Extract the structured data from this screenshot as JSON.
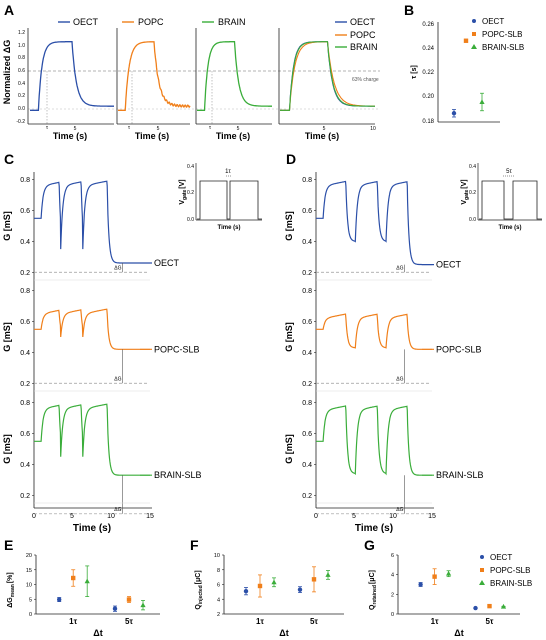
{
  "colors": {
    "oect": "#2b4fa8",
    "popc": "#f07f1a",
    "brain": "#3aad3a",
    "axis": "#222222",
    "dash": "#9a9a9a"
  },
  "panels": {
    "A": {
      "label": "A",
      "ylabel": "Normalized ΔG",
      "xlabel": "Time (s)",
      "yticks": [
        "1.2",
        "1.0",
        "0.8",
        "0.6",
        "0.4",
        "0.2",
        "0.0",
        "-0.2"
      ],
      "xtick_mid": "5",
      "xtick_end": "10",
      "tau": "τ",
      "threshold_label": "63% charge",
      "legend": {
        "oect": "OECT",
        "popc": "POPC",
        "brain": "BRAIN"
      }
    },
    "B": {
      "label": "B",
      "ylabel": "τ [s]",
      "yticks": [
        "0.26",
        "0.24",
        "0.22",
        "0.20",
        "0.18"
      ],
      "legend": {
        "oect": "OECT",
        "popc": "POPC-SLB",
        "brain": "BRAIN-SLB"
      }
    },
    "C": {
      "label": "C",
      "ylabel": "G [mS]",
      "yticks": [
        "0.8",
        "0.6",
        "0.4",
        "0.2"
      ],
      "xticks": [
        "0",
        "5",
        "10",
        "15"
      ],
      "xlabel": "Time (s)",
      "delta": "ΔG",
      "trace_labels": {
        "oect": "OECT",
        "popc": "POPC-SLB",
        "brain": "BRAIN-SLB"
      },
      "inset": {
        "ylabel": "V",
        "ylabel_sub": "gate",
        "ylabel_unit": "[V]",
        "yticks": [
          "0.4",
          "0.2",
          "0.0"
        ],
        "xlabel": "Time (s)",
        "marker": "1τ"
      }
    },
    "D": {
      "label": "D",
      "ylabel": "G [mS]",
      "yticks": [
        "0.8",
        "0.6",
        "0.4",
        "0.2"
      ],
      "xticks": [
        "0",
        "5",
        "10",
        "15"
      ],
      "xlabel": "Time (s)",
      "delta": "ΔG",
      "trace_labels": {
        "oect": "OECT",
        "popc": "POPC-SLB",
        "brain": "BRAIN-SLB"
      },
      "inset": {
        "ylabel": "V",
        "ylabel_sub": "gate",
        "ylabel_unit": "[V]",
        "yticks": [
          "0.4",
          "0.2",
          "0.0"
        ],
        "xlabel": "Time (s)",
        "marker": "5τ"
      }
    },
    "E": {
      "label": "E",
      "ylabel": "ΔG",
      "ylabel_sub": "mean",
      "ylabel_unit": "[%]",
      "yticks": [
        "20",
        "15",
        "10",
        "5",
        "0"
      ],
      "xticks": [
        "1τ",
        "5τ"
      ],
      "xlabel": "Δt"
    },
    "F": {
      "label": "F",
      "ylabel": "Q",
      "ylabel_sub": "injected",
      "ylabel_unit": "[μC]",
      "yticks": [
        "10",
        "8",
        "6",
        "4",
        "2"
      ],
      "xticks": [
        "1τ",
        "5τ"
      ],
      "xlabel": "Δt"
    },
    "G": {
      "label": "G",
      "ylabel": "Q",
      "ylabel_sub": "retained",
      "ylabel_unit": "[μC]",
      "yticks": [
        "6",
        "4",
        "2",
        "0"
      ],
      "xticks": [
        "1τ",
        "5τ"
      ],
      "xlabel": "Δt",
      "legend": {
        "oect": "OECT",
        "popc": "POPC-SLB",
        "brain": "BRAIN-SLB"
      }
    }
  },
  "chart_data": [
    {
      "panel": "A",
      "type": "line",
      "xlabel": "Time (s)",
      "ylabel": "Normalized ΔG",
      "ylim": [
        -0.2,
        1.2
      ],
      "xlim": [
        0,
        10
      ],
      "threshold": 0.63,
      "series": [
        {
          "name": "OECT",
          "tau": 0.19
        },
        {
          "name": "POPC",
          "tau": 0.245
        },
        {
          "name": "BRAIN",
          "tau": 0.2
        }
      ],
      "pulse_window": [
        1,
        5
      ]
    },
    {
      "panel": "B",
      "type": "scatter",
      "ylabel": "τ [s]",
      "ylim": [
        0.18,
        0.26
      ],
      "series": [
        {
          "name": "OECT",
          "value": 0.187,
          "err": 0.003
        },
        {
          "name": "POPC-SLB",
          "value": 0.245,
          "err": 0.001
        },
        {
          "name": "BRAIN-SLB",
          "value": 0.196,
          "err": 0.007
        }
      ]
    },
    {
      "panel": "C",
      "type": "line",
      "xlabel": "Time (s)",
      "ylabel": "G [mS]",
      "xlim": [
        0,
        15
      ],
      "ylim": [
        0.2,
        0.8
      ],
      "inter_pulse_gap": "1τ",
      "series": [
        {
          "name": "OECT",
          "start": 0.55,
          "plateau": 0.76,
          "dip": 0.35,
          "end": 0.26,
          "baseline": 0.2
        },
        {
          "name": "POPC-SLB",
          "start": 0.55,
          "plateau": 0.65,
          "dip": 0.5,
          "end": 0.42,
          "baseline": 0.2
        },
        {
          "name": "BRAIN-SLB",
          "start": 0.55,
          "plateau": 0.76,
          "dip": 0.45,
          "end": 0.33,
          "baseline": 0.08
        }
      ],
      "inset": {
        "ylabel": "V gate [V]",
        "ylim": [
          0,
          0.4
        ],
        "high": 0.3
      }
    },
    {
      "panel": "D",
      "type": "line",
      "xlabel": "Time (s)",
      "ylabel": "G [mS]",
      "xlim": [
        0,
        15
      ],
      "ylim": [
        0.2,
        0.8
      ],
      "inter_pulse_gap": "5τ",
      "series": [
        {
          "name": "OECT",
          "start": 0.55,
          "plateau": 0.76,
          "dip": 0.4,
          "end": 0.25,
          "baseline": 0.2
        },
        {
          "name": "POPC-SLB",
          "start": 0.55,
          "plateau": 0.62,
          "dip": 0.43,
          "end": 0.42,
          "baseline": 0.2
        },
        {
          "name": "BRAIN-SLB",
          "start": 0.55,
          "plateau": 0.75,
          "dip": 0.34,
          "end": 0.33,
          "baseline": 0.08
        }
      ],
      "inset": {
        "ylabel": "V gate [V]",
        "ylim": [
          0,
          0.4
        ],
        "high": 0.3
      }
    },
    {
      "panel": "E",
      "type": "scatter",
      "xlabel": "Δt",
      "ylabel": "ΔG mean [%]",
      "categories": [
        "1τ",
        "5τ"
      ],
      "ylim": [
        0,
        20
      ],
      "series": [
        {
          "name": "OECT",
          "values": [
            4.9,
            1.8
          ],
          "errors": [
            0.7,
            0.9
          ]
        },
        {
          "name": "POPC-SLB",
          "values": [
            12.2,
            4.9
          ],
          "errors": [
            2.8,
            1.0
          ]
        },
        {
          "name": "BRAIN-SLB",
          "values": [
            11.1,
            3.0
          ],
          "errors": [
            5.2,
            1.6
          ]
        }
      ]
    },
    {
      "panel": "F",
      "type": "scatter",
      "xlabel": "Δt",
      "ylabel": "Q injected [μC]",
      "categories": [
        "1τ",
        "5τ"
      ],
      "ylim": [
        2,
        10
      ],
      "series": [
        {
          "name": "OECT",
          "values": [
            5.1,
            5.3
          ],
          "errors": [
            0.5,
            0.4
          ]
        },
        {
          "name": "POPC-SLB",
          "values": [
            5.8,
            6.7
          ],
          "errors": [
            1.5,
            1.7
          ]
        },
        {
          "name": "BRAIN-SLB",
          "values": [
            6.3,
            7.3
          ],
          "errors": [
            0.6,
            0.6
          ]
        }
      ]
    },
    {
      "panel": "G",
      "type": "scatter",
      "xlabel": "Δt",
      "ylabel": "Q retained [μC]",
      "categories": [
        "1τ",
        "5τ"
      ],
      "ylim": [
        0,
        6
      ],
      "series": [
        {
          "name": "OECT",
          "values": [
            3.0,
            0.6
          ],
          "errors": [
            0.2,
            0.03
          ]
        },
        {
          "name": "POPC-SLB",
          "values": [
            3.8,
            0.8
          ],
          "errors": [
            0.8,
            0.05
          ]
        },
        {
          "name": "BRAIN-SLB",
          "values": [
            4.1,
            0.75
          ],
          "errors": [
            0.3,
            0.03
          ]
        }
      ]
    }
  ]
}
